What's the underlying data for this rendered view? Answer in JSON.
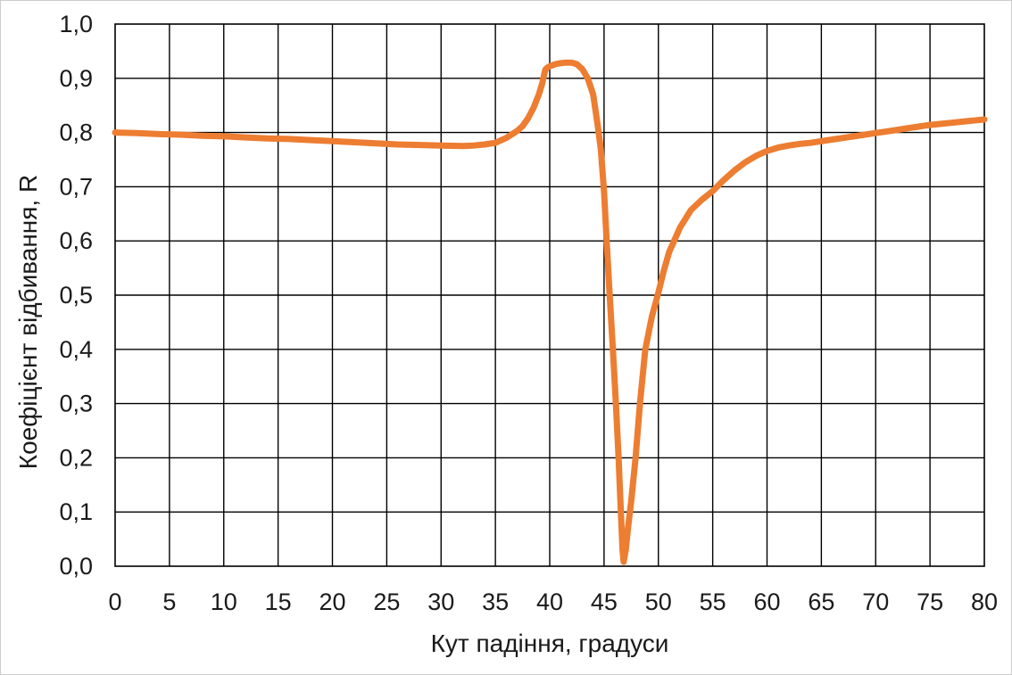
{
  "chart_data": {
    "type": "line",
    "title": "",
    "xlabel": "Кут падіння, градуси",
    "ylabel": "Коефіцієнт відбивання, R",
    "xlim": [
      0,
      80
    ],
    "ylim": [
      0.0,
      1.0
    ],
    "grid": true,
    "legend": "none",
    "grid_color": "#000000",
    "line_color": "#ED7D31",
    "x_ticks": {
      "values": [
        0,
        5,
        10,
        15,
        20,
        25,
        30,
        35,
        40,
        45,
        50,
        55,
        60,
        65,
        70,
        75,
        80
      ],
      "labels": [
        "0",
        "5",
        "10",
        "15",
        "20",
        "25",
        "30",
        "35",
        "40",
        "45",
        "50",
        "55",
        "60",
        "65",
        "70",
        "75",
        "80"
      ]
    },
    "y_ticks": {
      "values": [
        0.0,
        0.1,
        0.2,
        0.3,
        0.4,
        0.5,
        0.6,
        0.7,
        0.8,
        0.9,
        1.0
      ],
      "labels": [
        "0,0",
        "0,1",
        "0,2",
        "0,3",
        "0,4",
        "0,5",
        "0,6",
        "0,7",
        "0,8",
        "0,9",
        "1,0"
      ]
    },
    "series": [
      {
        "points": [
          [
            0,
            0.8
          ],
          [
            2,
            0.799
          ],
          [
            4,
            0.797
          ],
          [
            6,
            0.796
          ],
          [
            8,
            0.794
          ],
          [
            10,
            0.793
          ],
          [
            12,
            0.791
          ],
          [
            14,
            0.789
          ],
          [
            16,
            0.788
          ],
          [
            18,
            0.786
          ],
          [
            20,
            0.784
          ],
          [
            22,
            0.782
          ],
          [
            24,
            0.78
          ],
          [
            26,
            0.778
          ],
          [
            28,
            0.777
          ],
          [
            30,
            0.776
          ],
          [
            31,
            0.7755
          ],
          [
            32,
            0.775
          ],
          [
            33,
            0.776
          ],
          [
            34,
            0.778
          ],
          [
            35,
            0.781
          ],
          [
            36,
            0.79
          ],
          [
            37,
            0.803
          ],
          [
            37.5,
            0.812
          ],
          [
            38,
            0.826
          ],
          [
            38.5,
            0.845
          ],
          [
            39,
            0.87
          ],
          [
            39.3,
            0.89
          ],
          [
            39.5,
            0.908
          ],
          [
            39.6,
            0.916
          ],
          [
            39.8,
            0.92
          ],
          [
            40,
            0.922
          ],
          [
            40.5,
            0.926
          ],
          [
            41,
            0.928
          ],
          [
            41.5,
            0.929
          ],
          [
            42,
            0.929
          ],
          [
            42.5,
            0.926
          ],
          [
            43,
            0.917
          ],
          [
            43.5,
            0.9
          ],
          [
            44,
            0.87
          ],
          [
            44.4,
            0.815
          ],
          [
            44.7,
            0.77
          ],
          [
            45,
            0.69
          ],
          [
            45.2,
            0.615
          ],
          [
            45.5,
            0.505
          ],
          [
            45.8,
            0.405
          ],
          [
            46.1,
            0.295
          ],
          [
            46.35,
            0.195
          ],
          [
            46.55,
            0.1
          ],
          [
            46.7,
            0.03
          ],
          [
            46.8,
            0.008
          ],
          [
            47,
            0.03
          ],
          [
            47.2,
            0.07
          ],
          [
            47.5,
            0.12
          ],
          [
            47.9,
            0.2
          ],
          [
            48.3,
            0.3
          ],
          [
            48.8,
            0.4
          ],
          [
            49.4,
            0.46
          ],
          [
            50,
            0.505
          ],
          [
            50.5,
            0.545
          ],
          [
            51,
            0.58
          ],
          [
            52,
            0.625
          ],
          [
            53,
            0.657
          ],
          [
            54,
            0.676
          ],
          [
            55,
            0.692
          ],
          [
            56,
            0.712
          ],
          [
            57,
            0.73
          ],
          [
            58,
            0.745
          ],
          [
            59,
            0.757
          ],
          [
            60,
            0.766
          ],
          [
            61,
            0.772
          ],
          [
            62,
            0.776
          ],
          [
            63,
            0.779
          ],
          [
            64,
            0.781
          ],
          [
            65,
            0.784
          ],
          [
            66,
            0.787
          ],
          [
            67,
            0.79
          ],
          [
            68,
            0.793
          ],
          [
            69,
            0.796
          ],
          [
            70,
            0.799
          ],
          [
            71,
            0.802
          ],
          [
            72,
            0.805
          ],
          [
            73,
            0.808
          ],
          [
            74,
            0.811
          ],
          [
            75,
            0.814
          ],
          [
            76,
            0.816
          ],
          [
            77,
            0.818
          ],
          [
            78,
            0.82
          ],
          [
            79,
            0.822
          ],
          [
            80,
            0.824
          ]
        ]
      }
    ]
  }
}
